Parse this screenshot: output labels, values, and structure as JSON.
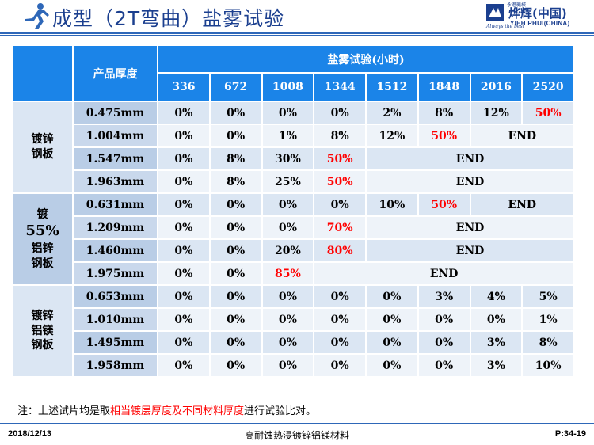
{
  "header": {
    "title": "成型（2T弯曲）盐雾试验",
    "logo": {
      "small_text": "永進機械",
      "company_cn": "烨辉(中国)",
      "company_en": "YIEH PHUI(CHINA)",
      "tagline": "Always the best"
    },
    "colors": {
      "title": "#1b3f8f",
      "rule": "#2e67b8"
    }
  },
  "table": {
    "header_thickness": "产品厚度",
    "header_group": "盐雾试验(小时)",
    "hours": [
      "336",
      "672",
      "1008",
      "1344",
      "1512",
      "1848",
      "2016",
      "2520"
    ],
    "end_label": "END",
    "colors": {
      "header": "#1b84e8",
      "highlight": "#ff0000"
    },
    "groups": [
      {
        "name": "镀锌钢板",
        "rows": [
          {
            "thickness": "0.475mm",
            "values": [
              "0%",
              "0%",
              "0%",
              "0%",
              "2%",
              "8%",
              "12%",
              "50%"
            ],
            "red": [
              7
            ]
          },
          {
            "thickness": "1.004mm",
            "values": [
              "0%",
              "0%",
              "1%",
              "8%",
              "12%",
              "50%"
            ],
            "red": [
              5
            ]
          },
          {
            "thickness": "1.547mm",
            "values": [
              "0%",
              "8%",
              "30%",
              "50%"
            ],
            "red": [
              3
            ]
          },
          {
            "thickness": "1.963mm",
            "values": [
              "0%",
              "8%",
              "25%",
              "50%"
            ],
            "red": [
              3
            ]
          }
        ]
      },
      {
        "name_line1": "镀",
        "name_line2": "55%",
        "name_line3": "铝锌",
        "name_line4": "钢板",
        "rows": [
          {
            "thickness": "0.631mm",
            "values": [
              "0%",
              "0%",
              "0%",
              "0%",
              "10%",
              "50%"
            ],
            "red": [
              5
            ]
          },
          {
            "thickness": "1.209mm",
            "values": [
              "0%",
              "0%",
              "0%",
              "70%"
            ],
            "red": [
              3
            ]
          },
          {
            "thickness": "1.460mm",
            "values": [
              "0%",
              "0%",
              "20%",
              "80%"
            ],
            "red": [
              3
            ]
          },
          {
            "thickness": "1.975mm",
            "values": [
              "0%",
              "0%",
              "85%"
            ],
            "red": [
              2
            ]
          }
        ]
      },
      {
        "name": "镀锌铝镁钢板",
        "rows": [
          {
            "thickness": "0.653mm",
            "values": [
              "0%",
              "0%",
              "0%",
              "0%",
              "0%",
              "3%",
              "4%",
              "5%"
            ],
            "red": []
          },
          {
            "thickness": "1.010mm",
            "values": [
              "0%",
              "0%",
              "0%",
              "0%",
              "0%",
              "0%",
              "0%",
              "1%"
            ],
            "red": []
          },
          {
            "thickness": "1.495mm",
            "values": [
              "0%",
              "0%",
              "0%",
              "0%",
              "0%",
              "0%",
              "3%",
              "8%"
            ],
            "red": []
          },
          {
            "thickness": "1.958mm",
            "values": [
              "0%",
              "0%",
              "0%",
              "0%",
              "0%",
              "0%",
              "3%",
              "10%"
            ],
            "red": []
          }
        ]
      }
    ]
  },
  "note": {
    "prefix": "注：上述试片均是取",
    "highlight": "相当镀层厚度及不同材料厚度",
    "suffix": "进行试验比对。"
  },
  "footer": {
    "date": "2018/12/13",
    "center": "高耐蚀热浸镀锌铝镁材料",
    "page": "P:34-19"
  }
}
